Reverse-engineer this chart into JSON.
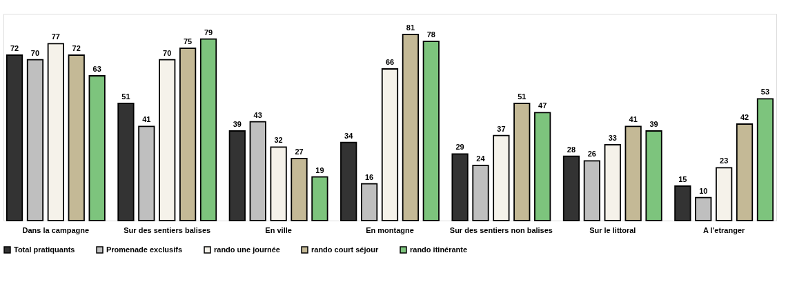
{
  "chart_data": {
    "type": "bar",
    "categories": [
      "Dans la campagne",
      "Sur des sentiers balises",
      "En ville",
      "En montagne",
      "Sur des sentiers non balises",
      "Sur le littoral",
      "A l'etranger"
    ],
    "series": [
      {
        "name": "Total pratiquants",
        "color": "#333333",
        "values": [
          72,
          51,
          39,
          34,
          29,
          28,
          15
        ]
      },
      {
        "name": "Promenade exclusifs",
        "color": "#bfbfbf",
        "values": [
          70,
          41,
          43,
          16,
          24,
          26,
          10
        ]
      },
      {
        "name": "rando une journée",
        "color": "#f5f2ea",
        "values": [
          77,
          70,
          32,
          66,
          37,
          33,
          23
        ]
      },
      {
        "name": "rando court séjour",
        "color": "#c4b996",
        "values": [
          72,
          75,
          27,
          81,
          51,
          41,
          42
        ]
      },
      {
        "name": "rando itinérante",
        "color": "#7dc47d",
        "values": [
          63,
          79,
          19,
          78,
          47,
          39,
          53
        ]
      }
    ],
    "data_labels": true,
    "legend": "bottom",
    "grid": false
  }
}
